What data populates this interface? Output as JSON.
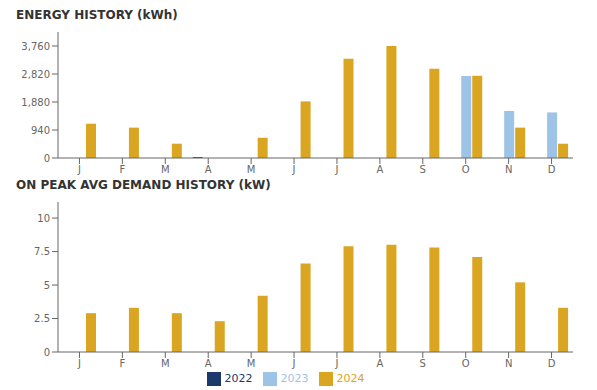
{
  "chart_data": [
    {
      "type": "bar",
      "title": "ENERGY HISTORY (kWh)",
      "categories": [
        "J",
        "F",
        "M",
        "A",
        "M",
        "J",
        "J",
        "A",
        "S",
        "O",
        "N",
        "D"
      ],
      "series": [
        {
          "name": "2022",
          "color": "#1B3A6B",
          "values": [
            0,
            0,
            0,
            30,
            0,
            0,
            0,
            0,
            0,
            0,
            0,
            0
          ]
        },
        {
          "name": "2023",
          "color": "#9DC3E6",
          "values": [
            0,
            0,
            0,
            0,
            0,
            0,
            0,
            0,
            0,
            2750,
            1580,
            1530
          ]
        },
        {
          "name": "2024",
          "color": "#DAA520",
          "values": [
            1150,
            1020,
            480,
            0,
            680,
            1900,
            3330,
            3760,
            3000,
            2760,
            1020,
            480
          ]
        }
      ],
      "ylim": [
        0,
        4230
      ],
      "yticks": [
        0,
        {
          "value": 940,
          "label": "940"
        },
        {
          "value": 1880,
          "label": "1,880"
        },
        {
          "value": 2820,
          "label": "2,820"
        },
        {
          "value": 3760,
          "label": "3,760"
        }
      ],
      "grid": false
    },
    {
      "type": "bar",
      "title": "ON PEAK AVG DEMAND HISTORY (kW)",
      "categories": [
        "J",
        "F",
        "M",
        "A",
        "M",
        "J",
        "J",
        "A",
        "S",
        "O",
        "N",
        "D"
      ],
      "series": [
        {
          "name": "2022",
          "color": "#1B3A6B",
          "values": [
            0,
            0,
            0,
            0,
            0,
            0,
            0,
            0,
            0,
            0,
            0,
            0
          ]
        },
        {
          "name": "2023",
          "color": "#9DC3E6",
          "values": [
            0,
            0,
            0,
            0,
            0,
            0,
            0,
            0,
            0,
            0,
            0,
            0
          ]
        },
        {
          "name": "2024",
          "color": "#DAA520",
          "values": [
            2.9,
            3.3,
            2.9,
            2.3,
            4.2,
            6.6,
            7.9,
            8.0,
            7.8,
            7.1,
            5.2,
            3.3
          ]
        }
      ],
      "ylim": [
        0,
        11.2
      ],
      "yticks": [
        0,
        2.5,
        5,
        7.5,
        10
      ],
      "grid": false,
      "legend": "bottom"
    }
  ]
}
